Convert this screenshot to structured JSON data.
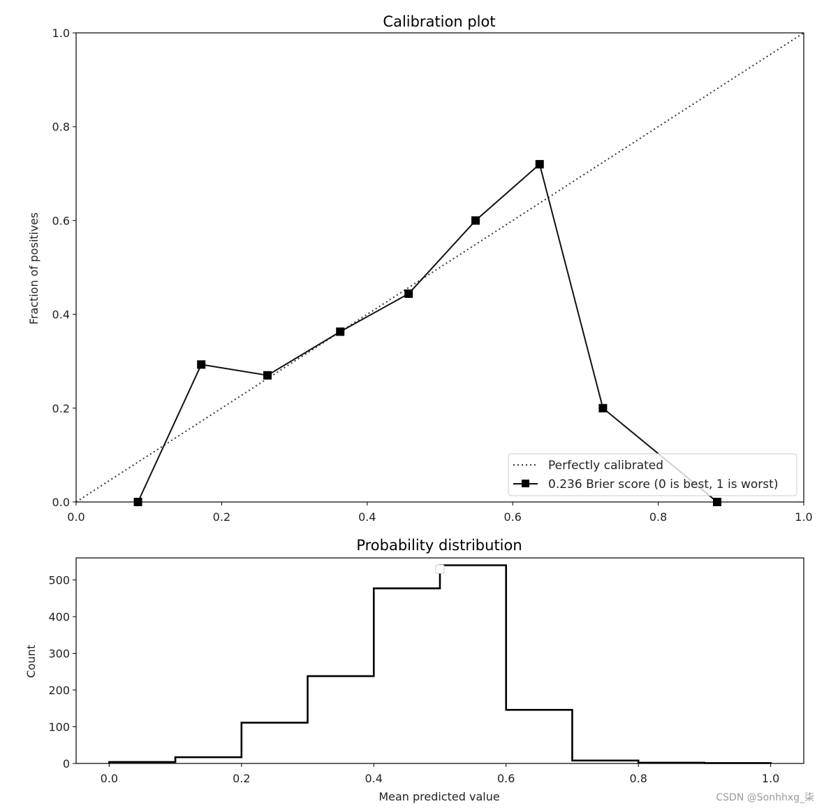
{
  "chart_data": [
    {
      "type": "line",
      "title": "Calibration plot",
      "xlabel": "",
      "ylabel": "Fraction of positives",
      "xlim": [
        0.0,
        1.0
      ],
      "ylim": [
        0.0,
        1.0
      ],
      "xticks": [
        "0.0",
        "0.2",
        "0.4",
        "0.6",
        "0.8",
        "1.0"
      ],
      "yticks": [
        "0.0",
        "0.2",
        "0.4",
        "0.6",
        "0.8",
        "1.0"
      ],
      "legend_position": "bottom-right",
      "series": [
        {
          "name": "Perfectly calibrated",
          "style": "dotted",
          "color": "#333333",
          "x": [
            0.0,
            1.0
          ],
          "y": [
            0.0,
            1.0
          ]
        },
        {
          "name": "0.236 Brier score (0 is best, 1 is worst)",
          "style": "solid-square-markers",
          "color": "#111111",
          "x": [
            0.085,
            0.172,
            0.263,
            0.363,
            0.457,
            0.549,
            0.637,
            0.724,
            0.881
          ],
          "y": [
            0.0,
            0.293,
            0.27,
            0.363,
            0.444,
            0.6,
            0.72,
            0.2,
            0.0
          ]
        }
      ]
    },
    {
      "type": "histogram",
      "title": "Probability distribution",
      "xlabel": "Mean predicted value",
      "ylabel": "Count",
      "xlim": [
        -0.05,
        1.05
      ],
      "ylim": [
        0,
        560
      ],
      "xticks": [
        "0.0",
        "0.2",
        "0.4",
        "0.6",
        "0.8",
        "1.0"
      ],
      "yticks": [
        "0",
        "100",
        "200",
        "300",
        "400",
        "500"
      ],
      "bin_edges": [
        0.0,
        0.1,
        0.2,
        0.3,
        0.4,
        0.5,
        0.6,
        0.7,
        0.8,
        0.9,
        1.0
      ],
      "counts": [
        4,
        17,
        111,
        238,
        477,
        540,
        146,
        8,
        2,
        1
      ],
      "histtype": "step",
      "color": "#000000"
    }
  ],
  "watermark": "CSDN @Sonhhxg_柒"
}
